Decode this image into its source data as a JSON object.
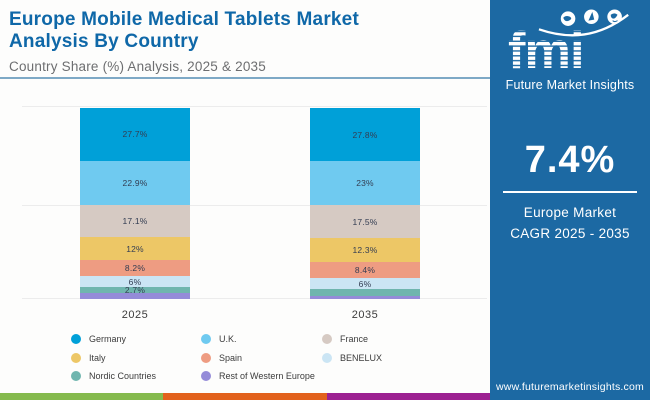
{
  "header": {
    "title": "Europe Mobile Medical Tablets Market Analysis By Country",
    "subtitle": "Country Share (%) Analysis, 2025 & 2035"
  },
  "chart_data": {
    "type": "bar",
    "stacked": true,
    "unit": "%",
    "title": "Europe Mobile Medical Tablets Market Analysis By Country",
    "subtitle": "Country Share (%) Analysis, 2025 & 2035",
    "categories": [
      "2025",
      "2035"
    ],
    "series": [
      {
        "name": "Germany",
        "color": "#00a0d8",
        "values": [
          27.7,
          27.8
        ],
        "labels": [
          "27.7%",
          "27.8%"
        ]
      },
      {
        "name": "U.K.",
        "color": "#6fcaf0",
        "values": [
          22.9,
          23.0
        ],
        "labels": [
          "22.9%",
          "23%"
        ]
      },
      {
        "name": "France",
        "color": "#d6cac3",
        "values": [
          17.1,
          17.5
        ],
        "labels": [
          "17.1%",
          "17.5%"
        ]
      },
      {
        "name": "Italy",
        "color": "#edc766",
        "values": [
          12.0,
          12.3
        ],
        "labels": [
          "12%",
          "12.3%"
        ]
      },
      {
        "name": "Spain",
        "color": "#ee9c82",
        "values": [
          8.2,
          8.4
        ],
        "labels": [
          "8.2%",
          "8.4%"
        ]
      },
      {
        "name": "BENELUX",
        "color": "#cbe5f4",
        "values": [
          6.0,
          6.0
        ],
        "labels": [
          "6%",
          "6%"
        ]
      },
      {
        "name": "Nordic Countries",
        "color": "#6fb5ae",
        "values": [
          2.7,
          3.7
        ],
        "labels": [
          "2.7%",
          ""
        ]
      },
      {
        "name": "Rest of Western Europe",
        "color": "#948bd8",
        "values": [
          3.4,
          1.3
        ],
        "labels": [
          "",
          ""
        ]
      }
    ],
    "ylim": [
      0,
      100
    ],
    "gridlines": true,
    "legend_position": "bottom"
  },
  "sidebar": {
    "logo_text": "fmi",
    "logo_subtext": "Future Market Insights",
    "stat_value": "7.4%",
    "stat_label_line1": "Europe Market",
    "stat_label_line2": "CAGR 2025 - 2035",
    "website": "www.futuremarketinsights.com"
  },
  "colors": {
    "panel_blue": "#1c69a3",
    "title_blue": "#0f68a8",
    "strip_green": "#85ba4d",
    "strip_orange": "#e2611c",
    "strip_magenta": "#9c2191"
  }
}
